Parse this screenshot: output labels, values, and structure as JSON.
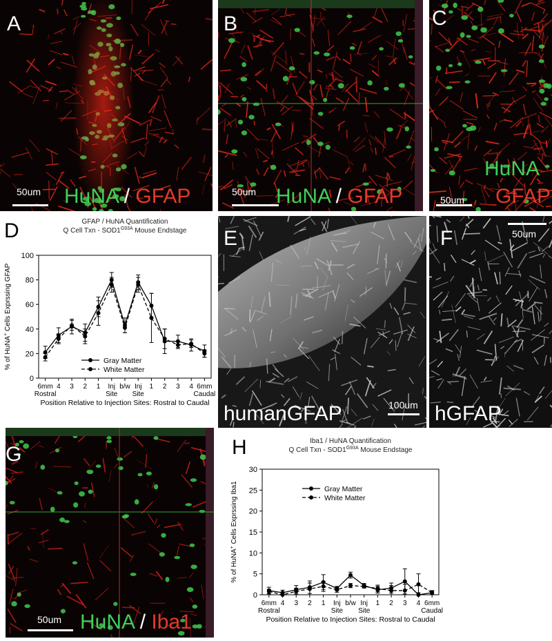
{
  "panels": {
    "A": {
      "label": "A",
      "stain1": "HuNA",
      "sep": " / ",
      "stain2": "GFAP",
      "scale": "50um"
    },
    "B": {
      "label": "B",
      "stain1": "HuNA",
      "sep": " / ",
      "stain2": "GFAP",
      "scale": "50um"
    },
    "C": {
      "label": "C",
      "stain1": "HuNA",
      "stain2": "GFAP",
      "scale": "50um"
    },
    "D": {
      "label": "D"
    },
    "E": {
      "label": "E",
      "stain": "humanGFAP",
      "scale": "100um"
    },
    "F": {
      "label": "F",
      "stain": "hGFAP",
      "scale": "50um"
    },
    "G": {
      "label": "G",
      "stain1": "HuNA",
      "sep": " / ",
      "stain2": "Iba1",
      "scale": "50um"
    },
    "H": {
      "label": "H"
    }
  },
  "chart_data": [
    {
      "type": "line",
      "title": "GFAP / HuNA Quantification",
      "subtitle_pre": "Q Cell Txn - SOD1",
      "subtitle_sup": "G93A",
      "subtitle_post": " Mouse Endstage",
      "ylabel_pre": "% of HuNA",
      "ylabel_sup": "+",
      "ylabel_post": " Cells Exprssing GFAP",
      "xlabel": "Position Relative to Injection Sites: Rostral to Caudal",
      "ylim": [
        0,
        100
      ],
      "yticks": [
        0,
        20,
        40,
        60,
        80,
        100
      ],
      "categories": [
        "6mm",
        "4",
        "3",
        "2",
        "1",
        "Inj",
        "b/w",
        "Inj",
        "1",
        "2",
        "3",
        "4",
        "6mm"
      ],
      "categories_sub": [
        "Rostral",
        "",
        "",
        "",
        "",
        "Site",
        "",
        "Site",
        "",
        "",
        "",
        "",
        "Caudal"
      ],
      "legend": "center-bottom",
      "series": [
        {
          "name": "Gray Matter",
          "style": "solid",
          "values": [
            21,
            35,
            42,
            37,
            58,
            80,
            43,
            78,
            59,
            30,
            30,
            27,
            22
          ],
          "err": [
            5,
            6,
            6,
            7,
            8,
            6,
            6,
            6,
            10,
            10,
            5,
            5,
            5
          ]
        },
        {
          "name": "White Matter",
          "style": "dashed",
          "values": [
            17,
            32,
            43,
            34,
            53,
            76,
            41,
            76,
            49,
            32,
            27,
            28,
            20
          ],
          "err": [
            3,
            4,
            4,
            6,
            10,
            6,
            4,
            6,
            20,
            8,
            3,
            3,
            3
          ]
        }
      ]
    },
    {
      "type": "line",
      "title": "Iba1 / HuNA Quantification",
      "subtitle_pre": "Q Cell Txn - SOD1",
      "subtitle_sup": "G93A",
      "subtitle_post": " Mouse Endstage",
      "ylabel_pre": "% of HuNA",
      "ylabel_sup": "+",
      "ylabel_post": " Cells Exprssing Iba1",
      "xlabel": "Position Relative to Injection Sites: Rostral to Caudal",
      "ylim": [
        0,
        30
      ],
      "yticks": [
        0,
        5,
        10,
        15,
        20,
        25,
        30
      ],
      "categories": [
        "6mm",
        "4",
        "3",
        "2",
        "1",
        "Inj",
        "b/w",
        "Inj",
        "1",
        "2",
        "3",
        "4",
        "6mm"
      ],
      "categories_sub": [
        "Rostral",
        "",
        "",
        "",
        "",
        "Site",
        "",
        "Site",
        "",
        "",
        "",
        "",
        "Caudal"
      ],
      "legend": "top-center",
      "series": [
        {
          "name": "Gray Matter",
          "style": "solid",
          "values": [
            1.0,
            0.5,
            1.2,
            1.8,
            3.0,
            1.5,
            4.7,
            2.2,
            1.2,
            1.6,
            3.2,
            0.0,
            0.5
          ],
          "err": [
            0.8,
            0.6,
            1.0,
            1.5,
            1.8,
            0.5,
            0.7,
            0.5,
            0.8,
            1.2,
            3.0,
            0.5,
            0.4
          ]
        },
        {
          "name": "White Matter",
          "style": "dashed",
          "values": [
            0.8,
            0.0,
            0.8,
            1.4,
            2.0,
            1.2,
            2.2,
            2.0,
            1.5,
            1.0,
            1.0,
            2.5,
            0.5
          ],
          "err": [
            0.5,
            0.5,
            0.8,
            1.4,
            1.2,
            0.6,
            0.5,
            0.4,
            0.8,
            1.2,
            1.5,
            2.5,
            0.5
          ]
        }
      ]
    }
  ]
}
